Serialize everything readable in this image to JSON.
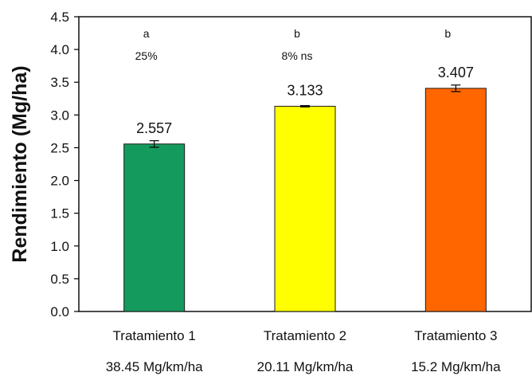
{
  "chart_data": {
    "type": "bar",
    "title": "",
    "xlabel": "",
    "ylabel": "Rendimiento (Mg/ha)",
    "ylim": [
      0,
      4.5
    ],
    "yticks": [
      "0.0",
      "0.5",
      "1.0",
      "1.5",
      "2.0",
      "2.5",
      "3.0",
      "3.5",
      "4.0",
      "4.5"
    ],
    "categories": [
      "Tratamiento 1",
      "Tratamiento 2",
      "Tratamiento 3"
    ],
    "sublabels": [
      "38.45 Mg/km/ha",
      "20.11 Mg/km/ha",
      "15.2 Mg/km/ha"
    ],
    "values": [
      2.557,
      3.133,
      3.407
    ],
    "value_labels": [
      "2.557",
      "3.133",
      "3.407"
    ],
    "error": [
      0.05,
      0.01,
      0.05
    ],
    "significance_letters": [
      "a",
      "b",
      "b"
    ],
    "significance_notes": [
      "25%",
      "8% ns",
      ""
    ],
    "colors": [
      "#159a5e",
      "#ffff00",
      "#ff6600"
    ],
    "grid": false,
    "legend": "none"
  }
}
